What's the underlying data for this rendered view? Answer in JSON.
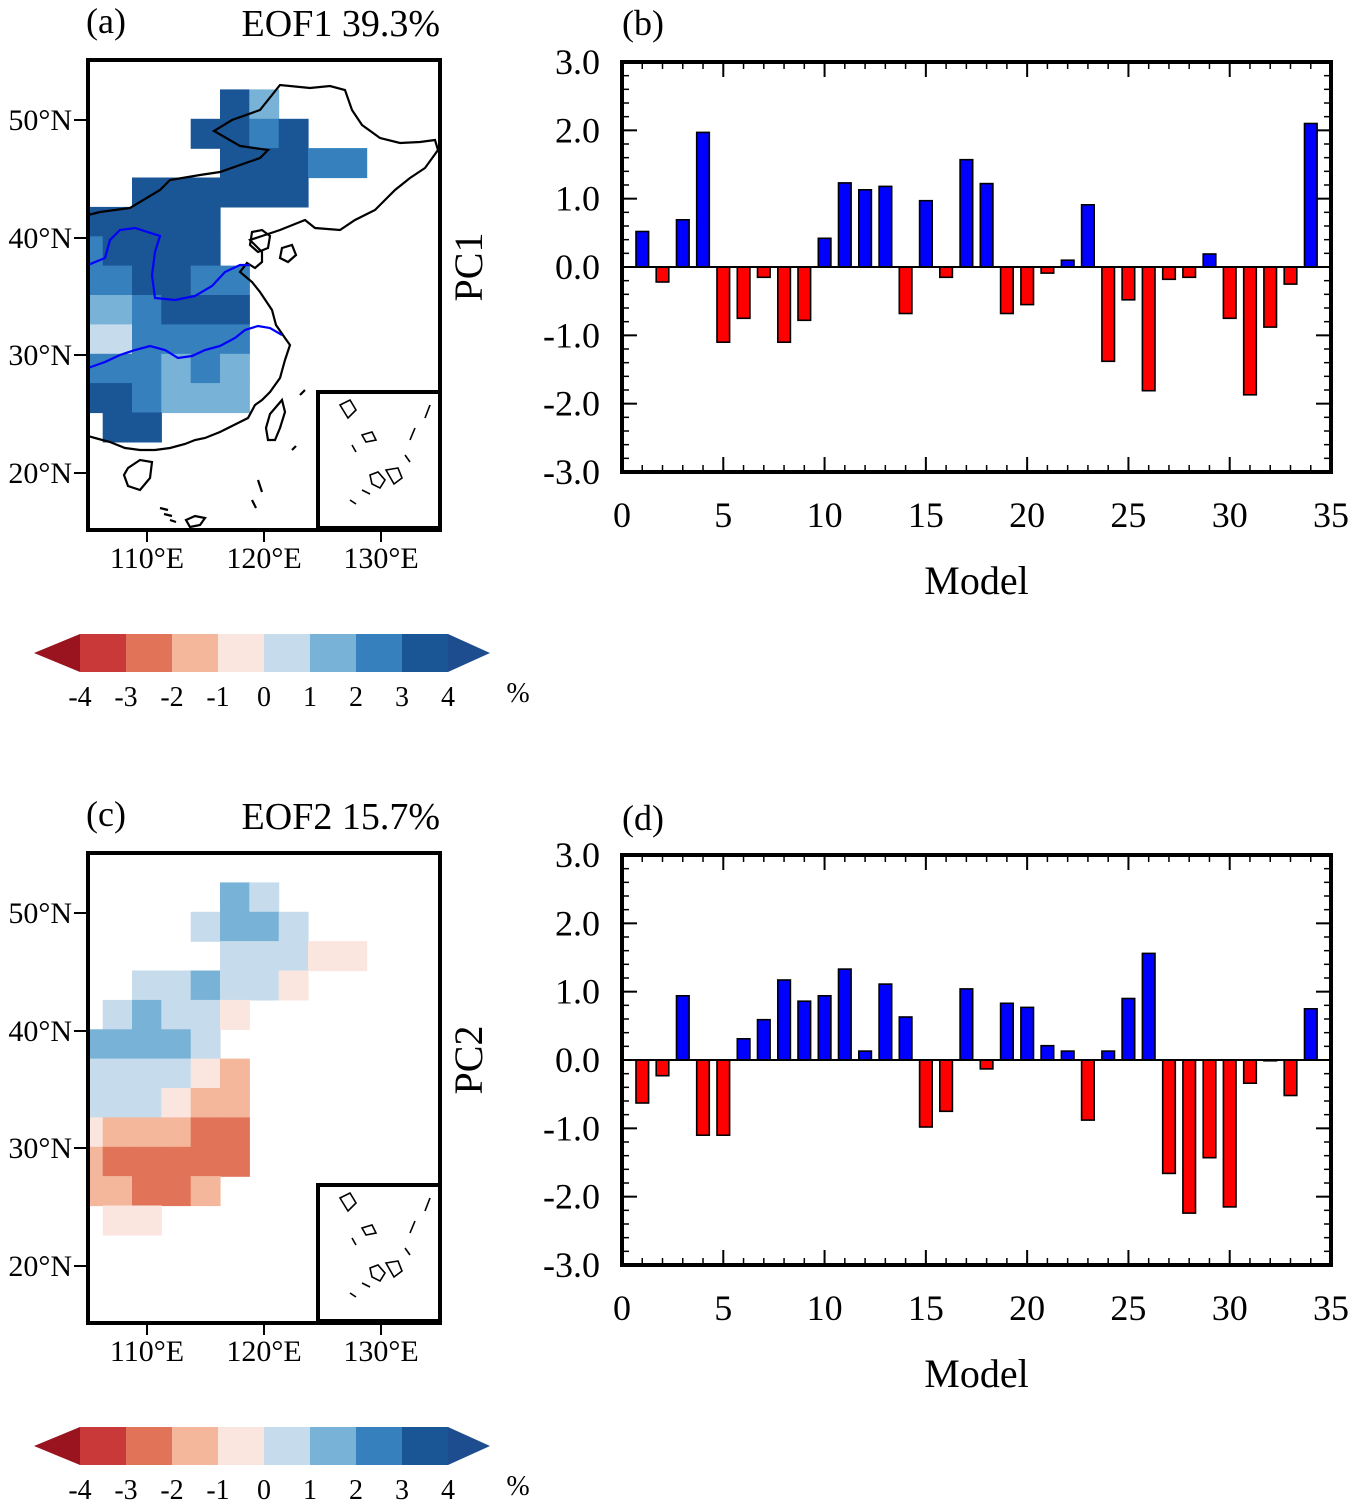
{
  "panels": {
    "a": {
      "label": "(a)",
      "title": "EOF1 39.3%"
    },
    "b": {
      "label": "(b)"
    },
    "c": {
      "label": "(c)",
      "title": "EOF2 15.7%"
    },
    "d": {
      "label": "(d)"
    }
  },
  "map_axes": {
    "lat_ticks": [
      "50°N",
      "40°N",
      "30°N",
      "20°N"
    ],
    "lon_ticks": [
      "110°E",
      "120°E",
      "130°E"
    ]
  },
  "colorbar": {
    "labels": [
      "-4",
      "-3",
      "-2",
      "-1",
      "0",
      "1",
      "2",
      "3",
      "4"
    ],
    "unit": "%",
    "colors": [
      "#99141e",
      "#c9393a",
      "#e07358",
      "#f4b79b",
      "#fbe6df",
      "#c6dcec",
      "#78b2d6",
      "#3580bd",
      "#1a5595",
      "#1d4d8e"
    ]
  },
  "bar_colors": {
    "positive": "#0000ff",
    "negative": "#ff0000"
  },
  "chart_data": [
    {
      "type": "map",
      "panel": "a",
      "title": "EOF1 39.3%",
      "xlabel": "",
      "ylabel": "",
      "lon_range": [
        105,
        135
      ],
      "lat_range": [
        15,
        55
      ],
      "cell_size_deg": 2.5,
      "cells": [
        {
          "lon": 117.5,
          "lat": 51.25,
          "v": 3.5
        },
        {
          "lon": 120.0,
          "lat": 51.25,
          "v": 1.5
        },
        {
          "lon": 115.0,
          "lat": 48.75,
          "v": 3.5
        },
        {
          "lon": 117.5,
          "lat": 48.75,
          "v": 3.5
        },
        {
          "lon": 120.0,
          "lat": 48.75,
          "v": 2.5
        },
        {
          "lon": 122.5,
          "lat": 48.75,
          "v": 3.5
        },
        {
          "lon": 117.5,
          "lat": 46.25,
          "v": 3.5
        },
        {
          "lon": 120.0,
          "lat": 46.25,
          "v": 3.5
        },
        {
          "lon": 122.5,
          "lat": 46.25,
          "v": 3.5
        },
        {
          "lon": 125.0,
          "lat": 46.25,
          "v": 2.5
        },
        {
          "lon": 127.5,
          "lat": 46.25,
          "v": 2.5
        },
        {
          "lon": 110.0,
          "lat": 43.75,
          "v": 3.5
        },
        {
          "lon": 112.5,
          "lat": 43.75,
          "v": 3.5
        },
        {
          "lon": 115.0,
          "lat": 43.75,
          "v": 3.5
        },
        {
          "lon": 117.5,
          "lat": 43.75,
          "v": 3.5
        },
        {
          "lon": 120.0,
          "lat": 43.75,
          "v": 3.5
        },
        {
          "lon": 122.5,
          "lat": 43.75,
          "v": 3.5
        },
        {
          "lon": 105.0,
          "lat": 41.25,
          "v": 3.5
        },
        {
          "lon": 107.5,
          "lat": 41.25,
          "v": 3.5
        },
        {
          "lon": 110.0,
          "lat": 41.25,
          "v": 3.5
        },
        {
          "lon": 112.5,
          "lat": 41.25,
          "v": 3.5
        },
        {
          "lon": 115.0,
          "lat": 41.25,
          "v": 3.5
        },
        {
          "lon": 105.0,
          "lat": 38.75,
          "v": 2.5
        },
        {
          "lon": 107.5,
          "lat": 38.75,
          "v": 3.5
        },
        {
          "lon": 110.0,
          "lat": 38.75,
          "v": 3.5
        },
        {
          "lon": 112.5,
          "lat": 38.75,
          "v": 3.5
        },
        {
          "lon": 115.0,
          "lat": 38.75,
          "v": 3.5
        },
        {
          "lon": 105.0,
          "lat": 36.25,
          "v": 2.5
        },
        {
          "lon": 107.5,
          "lat": 36.25,
          "v": 2.5
        },
        {
          "lon": 110.0,
          "lat": 36.25,
          "v": 3.5
        },
        {
          "lon": 112.5,
          "lat": 36.25,
          "v": 3.5
        },
        {
          "lon": 115.0,
          "lat": 36.25,
          "v": 2.5
        },
        {
          "lon": 117.5,
          "lat": 36.25,
          "v": 2.5
        },
        {
          "lon": 105.0,
          "lat": 33.75,
          "v": 1.5
        },
        {
          "lon": 107.5,
          "lat": 33.75,
          "v": 1.5
        },
        {
          "lon": 110.0,
          "lat": 33.75,
          "v": 2.5
        },
        {
          "lon": 112.5,
          "lat": 33.75,
          "v": 3.5
        },
        {
          "lon": 115.0,
          "lat": 33.75,
          "v": 3.5
        },
        {
          "lon": 117.5,
          "lat": 33.75,
          "v": 3.5
        },
        {
          "lon": 105.0,
          "lat": 31.25,
          "v": 0.5
        },
        {
          "lon": 107.5,
          "lat": 31.25,
          "v": 0.5
        },
        {
          "lon": 110.0,
          "lat": 31.25,
          "v": 2.5
        },
        {
          "lon": 112.5,
          "lat": 31.25,
          "v": 2.5
        },
        {
          "lon": 115.0,
          "lat": 31.25,
          "v": 2.5
        },
        {
          "lon": 117.5,
          "lat": 31.25,
          "v": 2.5
        },
        {
          "lon": 105.0,
          "lat": 28.75,
          "v": 2.5
        },
        {
          "lon": 107.5,
          "lat": 28.75,
          "v": 2.5
        },
        {
          "lon": 110.0,
          "lat": 28.75,
          "v": 2.5
        },
        {
          "lon": 112.5,
          "lat": 28.75,
          "v": 1.5
        },
        {
          "lon": 115.0,
          "lat": 28.75,
          "v": 2.5
        },
        {
          "lon": 117.5,
          "lat": 28.75,
          "v": 1.5
        },
        {
          "lon": 105.0,
          "lat": 26.25,
          "v": 3.5
        },
        {
          "lon": 107.5,
          "lat": 26.25,
          "v": 3.5
        },
        {
          "lon": 110.0,
          "lat": 26.25,
          "v": 2.5
        },
        {
          "lon": 112.5,
          "lat": 26.25,
          "v": 1.5
        },
        {
          "lon": 115.0,
          "lat": 26.25,
          "v": 1.5
        },
        {
          "lon": 117.5,
          "lat": 26.25,
          "v": 1.5
        },
        {
          "lon": 107.5,
          "lat": 23.75,
          "v": 3.5
        },
        {
          "lon": 110.0,
          "lat": 23.75,
          "v": 3.5
        }
      ]
    },
    {
      "type": "bar",
      "panel": "b",
      "xlabel": "Model",
      "ylabel": "PC1",
      "xlim": [
        0,
        35
      ],
      "ylim": [
        -3,
        3
      ],
      "xticks": [
        0,
        5,
        10,
        15,
        20,
        25,
        30,
        35
      ],
      "yticks": [
        3,
        2,
        1,
        0,
        -1,
        -2,
        -3
      ],
      "ytick_labels": [
        "3.0",
        "2.0",
        "1.0",
        "0.0",
        "-1.0",
        "-2.0",
        "-3.0"
      ],
      "x": [
        1,
        2,
        3,
        4,
        5,
        6,
        7,
        8,
        9,
        10,
        11,
        12,
        13,
        14,
        15,
        16,
        17,
        18,
        19,
        20,
        21,
        22,
        23,
        24,
        25,
        26,
        27,
        28,
        29,
        30,
        31,
        32,
        33,
        34
      ],
      "values": [
        0.52,
        -0.22,
        0.69,
        1.97,
        -1.1,
        -0.75,
        -0.15,
        -1.1,
        -0.78,
        0.42,
        1.23,
        1.13,
        1.18,
        -0.68,
        0.97,
        -0.15,
        1.57,
        1.22,
        -0.68,
        -0.55,
        -0.09,
        0.1,
        0.91,
        -1.38,
        -0.48,
        -1.81,
        -0.18,
        -0.15,
        0.19,
        -0.75,
        -1.87,
        -0.88,
        -0.25,
        2.1
      ]
    },
    {
      "type": "map",
      "panel": "c",
      "title": "EOF2 15.7%",
      "xlabel": "",
      "ylabel": "",
      "lon_range": [
        105,
        135
      ],
      "lat_range": [
        15,
        55
      ],
      "cell_size_deg": 2.5,
      "cells": [
        {
          "lon": 117.5,
          "lat": 51.25,
          "v": 1.5
        },
        {
          "lon": 120.0,
          "lat": 51.25,
          "v": 0.5
        },
        {
          "lon": 115.0,
          "lat": 48.75,
          "v": 0.5
        },
        {
          "lon": 117.5,
          "lat": 48.75,
          "v": 1.5
        },
        {
          "lon": 120.0,
          "lat": 48.75,
          "v": 1.5
        },
        {
          "lon": 122.5,
          "lat": 48.75,
          "v": 0.5
        },
        {
          "lon": 117.5,
          "lat": 46.25,
          "v": 0.5
        },
        {
          "lon": 120.0,
          "lat": 46.25,
          "v": 0.5
        },
        {
          "lon": 122.5,
          "lat": 46.25,
          "v": 0.5
        },
        {
          "lon": 125.0,
          "lat": 46.25,
          "v": -0.5
        },
        {
          "lon": 127.5,
          "lat": 46.25,
          "v": -0.5
        },
        {
          "lon": 110.0,
          "lat": 43.75,
          "v": 0.5
        },
        {
          "lon": 112.5,
          "lat": 43.75,
          "v": 0.5
        },
        {
          "lon": 115.0,
          "lat": 43.75,
          "v": 1.5
        },
        {
          "lon": 117.5,
          "lat": 43.75,
          "v": 0.5
        },
        {
          "lon": 120.0,
          "lat": 43.75,
          "v": 0.5
        },
        {
          "lon": 122.5,
          "lat": 43.75,
          "v": -0.5
        },
        {
          "lon": 107.5,
          "lat": 41.25,
          "v": 0.5
        },
        {
          "lon": 110.0,
          "lat": 41.25,
          "v": 1.5
        },
        {
          "lon": 112.5,
          "lat": 41.25,
          "v": 0.5
        },
        {
          "lon": 115.0,
          "lat": 41.25,
          "v": 0.5
        },
        {
          "lon": 117.5,
          "lat": 41.25,
          "v": -0.5
        },
        {
          "lon": 105.0,
          "lat": 38.75,
          "v": 1.5
        },
        {
          "lon": 107.5,
          "lat": 38.75,
          "v": 1.5
        },
        {
          "lon": 110.0,
          "lat": 38.75,
          "v": 1.5
        },
        {
          "lon": 112.5,
          "lat": 38.75,
          "v": 1.5
        },
        {
          "lon": 115.0,
          "lat": 38.75,
          "v": 0.5
        },
        {
          "lon": 105.0,
          "lat": 36.25,
          "v": 0.5
        },
        {
          "lon": 107.5,
          "lat": 36.25,
          "v": 0.5
        },
        {
          "lon": 110.0,
          "lat": 36.25,
          "v": 0.5
        },
        {
          "lon": 112.5,
          "lat": 36.25,
          "v": 0.5
        },
        {
          "lon": 115.0,
          "lat": 36.25,
          "v": -0.5
        },
        {
          "lon": 117.5,
          "lat": 36.25,
          "v": -1.5
        },
        {
          "lon": 105.0,
          "lat": 33.75,
          "v": 0.5
        },
        {
          "lon": 107.5,
          "lat": 33.75,
          "v": 0.5
        },
        {
          "lon": 110.0,
          "lat": 33.75,
          "v": 0.5
        },
        {
          "lon": 112.5,
          "lat": 33.75,
          "v": -0.5
        },
        {
          "lon": 115.0,
          "lat": 33.75,
          "v": -1.5
        },
        {
          "lon": 117.5,
          "lat": 33.75,
          "v": -1.5
        },
        {
          "lon": 105.0,
          "lat": 31.25,
          "v": -0.5
        },
        {
          "lon": 107.5,
          "lat": 31.25,
          "v": -1.5
        },
        {
          "lon": 110.0,
          "lat": 31.25,
          "v": -1.5
        },
        {
          "lon": 112.5,
          "lat": 31.25,
          "v": -1.5
        },
        {
          "lon": 115.0,
          "lat": 31.25,
          "v": -2.5
        },
        {
          "lon": 117.5,
          "lat": 31.25,
          "v": -2.5
        },
        {
          "lon": 105.0,
          "lat": 28.75,
          "v": -1.5
        },
        {
          "lon": 107.5,
          "lat": 28.75,
          "v": -2.5
        },
        {
          "lon": 110.0,
          "lat": 28.75,
          "v": -2.5
        },
        {
          "lon": 112.5,
          "lat": 28.75,
          "v": -2.5
        },
        {
          "lon": 115.0,
          "lat": 28.75,
          "v": -2.5
        },
        {
          "lon": 117.5,
          "lat": 28.75,
          "v": -2.5
        },
        {
          "lon": 105.0,
          "lat": 26.25,
          "v": -1.5
        },
        {
          "lon": 107.5,
          "lat": 26.25,
          "v": -1.5
        },
        {
          "lon": 110.0,
          "lat": 26.25,
          "v": -2.5
        },
        {
          "lon": 112.5,
          "lat": 26.25,
          "v": -2.5
        },
        {
          "lon": 115.0,
          "lat": 26.25,
          "v": -1.5
        },
        {
          "lon": 107.5,
          "lat": 23.75,
          "v": -0.5
        },
        {
          "lon": 110.0,
          "lat": 23.75,
          "v": -0.5
        }
      ]
    },
    {
      "type": "bar",
      "panel": "d",
      "xlabel": "Model",
      "ylabel": "PC2",
      "xlim": [
        0,
        35
      ],
      "ylim": [
        -3,
        3
      ],
      "xticks": [
        0,
        5,
        10,
        15,
        20,
        25,
        30,
        35
      ],
      "yticks": [
        3,
        2,
        1,
        0,
        -1,
        -2,
        -3
      ],
      "ytick_labels": [
        "3.0",
        "2.0",
        "1.0",
        "0.0",
        "-1.0",
        "-2.0",
        "-3.0"
      ],
      "x": [
        1,
        2,
        3,
        4,
        5,
        6,
        7,
        8,
        9,
        10,
        11,
        12,
        13,
        14,
        15,
        16,
        17,
        18,
        19,
        20,
        21,
        22,
        23,
        24,
        25,
        26,
        27,
        28,
        29,
        30,
        31,
        32,
        33,
        34
      ],
      "values": [
        -0.63,
        -0.23,
        0.94,
        -1.1,
        -1.1,
        0.31,
        0.59,
        1.17,
        0.86,
        0.94,
        1.33,
        0.13,
        1.11,
        0.63,
        -0.98,
        -0.75,
        1.04,
        -0.13,
        0.83,
        0.77,
        0.21,
        0.13,
        -0.88,
        0.13,
        0.9,
        1.56,
        -1.66,
        -2.24,
        -1.43,
        -2.15,
        -0.34,
        -0.01,
        -0.52,
        0.75
      ]
    }
  ]
}
